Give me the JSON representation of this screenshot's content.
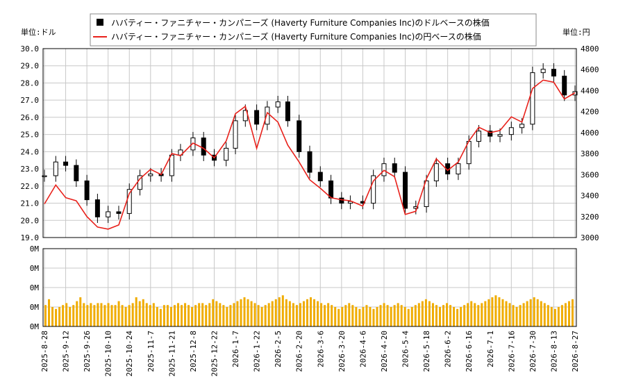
{
  "legend": {
    "usd_label": "ハバティー・ファニチャー・カンパニーズ (Haverty Furniture Companies Inc)のドルベースの株価",
    "jpy_label": "ハバティー・ファニチャー・カンパニーズ (Haverty Furniture Companies Inc)の円ベースの株価"
  },
  "units": {
    "left": "単位:ドル",
    "right": "単位:円"
  },
  "colors": {
    "candle": "#000000",
    "yen_line": "#e8201a",
    "volume": "#f0ac00",
    "grid": "#c8c8c8"
  },
  "chart_data": [
    {
      "type": "line",
      "subtype": "candlestick-with-line",
      "x_ticks": [
        "2025-8-28",
        "2025-9-12",
        "2025-9-26",
        "2025-10-10",
        "2025-10-24",
        "2025-11-7",
        "2025-11-21",
        "2025-12-8",
        "2025-12-22",
        "2026-1-7",
        "2026-1-22",
        "2026-2-5",
        "2026-2-20",
        "2026-3-6",
        "2026-3-20",
        "2026-4-6",
        "2026-4-20",
        "2026-5-4",
        "2026-5-18",
        "2026-6-2",
        "2026-6-16",
        "2026-7-1",
        "2026-7-16",
        "2026-7-30",
        "2026-8-13",
        "2026-8-27"
      ],
      "y_left": {
        "min": 19.0,
        "max": 30.0,
        "ticks": [
          "19.0",
          "20.0",
          "21.0",
          "22.0",
          "23.0",
          "24.0",
          "25.0",
          "26.0",
          "27.0",
          "28.0",
          "29.0",
          "30.0"
        ]
      },
      "y_right": {
        "min": 3000,
        "max": 4800,
        "ticks": [
          "3000",
          "3200",
          "3400",
          "3600",
          "3800",
          "4000",
          "4200",
          "4400",
          "4600",
          "4800"
        ]
      },
      "grid": true,
      "legend_position": "top",
      "series": [
        {
          "name": "ハバティー・ファニチャー・カンパニーズ (Haverty Furniture Companies Inc)のドルベースの株価",
          "axis": "left",
          "x": [
            "2025-8-28",
            "2025-9-5",
            "2025-9-12",
            "2025-9-19",
            "2025-9-26",
            "2025-10-3",
            "2025-10-10",
            "2025-10-17",
            "2025-10-24",
            "2025-10-31",
            "2025-11-7",
            "2025-11-14",
            "2025-11-21",
            "2025-11-28",
            "2025-12-8",
            "2025-12-15",
            "2025-12-22",
            "2025-12-31",
            "2026-1-7",
            "2026-1-14",
            "2026-1-22",
            "2026-1-29",
            "2026-2-5",
            "2026-2-12",
            "2026-2-20",
            "2026-2-27",
            "2026-3-6",
            "2026-3-13",
            "2026-3-20",
            "2026-3-27",
            "2026-4-6",
            "2026-4-13",
            "2026-4-20",
            "2026-4-27",
            "2026-5-4",
            "2026-5-11",
            "2026-5-18",
            "2026-5-25",
            "2026-6-2",
            "2026-6-9",
            "2026-6-16",
            "2026-6-23",
            "2026-7-1",
            "2026-7-8",
            "2026-7-16",
            "2026-7-23",
            "2026-7-30",
            "2026-8-6",
            "2026-8-13",
            "2026-8-20",
            "2026-8-27"
          ],
          "values": [
            22.6,
            23.4,
            23.2,
            22.3,
            21.2,
            20.2,
            20.5,
            20.4,
            21.8,
            22.6,
            22.7,
            22.6,
            23.8,
            24.1,
            24.8,
            23.8,
            23.5,
            24.2,
            25.8,
            26.4,
            25.6,
            26.6,
            26.9,
            25.8,
            24.0,
            22.8,
            22.3,
            21.3,
            21.0,
            21.1,
            21.0,
            22.6,
            23.3,
            22.8,
            20.7,
            20.8,
            22.3,
            23.3,
            22.7,
            23.3,
            24.6,
            25.2,
            24.9,
            25.0,
            25.4,
            25.6,
            28.6,
            28.8,
            28.4,
            27.3,
            27.5
          ]
        },
        {
          "name": "ハバティー・ファニチャー・カンパニーズ (Haverty Furniture Companies Inc)の円ベースの株価",
          "axis": "right",
          "x": [
            "2025-8-28",
            "2025-9-5",
            "2025-9-12",
            "2025-9-19",
            "2025-9-26",
            "2025-10-3",
            "2025-10-10",
            "2025-10-17",
            "2025-10-24",
            "2025-10-31",
            "2025-11-7",
            "2025-11-14",
            "2025-11-21",
            "2025-11-28",
            "2025-12-8",
            "2025-12-15",
            "2025-12-22",
            "2025-12-31",
            "2026-1-7",
            "2026-1-14",
            "2026-1-22",
            "2026-1-29",
            "2026-2-5",
            "2026-2-12",
            "2026-2-20",
            "2026-2-27",
            "2026-3-6",
            "2026-3-13",
            "2026-3-20",
            "2026-3-27",
            "2026-4-6",
            "2026-4-13",
            "2026-4-20",
            "2026-4-27",
            "2026-5-4",
            "2026-5-11",
            "2026-5-18",
            "2026-5-25",
            "2026-6-2",
            "2026-6-9",
            "2026-6-16",
            "2026-6-23",
            "2026-7-1",
            "2026-7-8",
            "2026-7-16",
            "2026-7-23",
            "2026-7-30",
            "2026-8-6",
            "2026-8-13",
            "2026-8-20",
            "2026-8-27"
          ],
          "values": [
            3320,
            3500,
            3380,
            3350,
            3200,
            3100,
            3080,
            3120,
            3420,
            3560,
            3650,
            3600,
            3800,
            3780,
            3900,
            3850,
            3760,
            3920,
            4180,
            4250,
            3850,
            4190,
            4100,
            3880,
            3720,
            3550,
            3470,
            3380,
            3360,
            3350,
            3300,
            3540,
            3640,
            3580,
            3220,
            3250,
            3560,
            3750,
            3640,
            3720,
            3920,
            4050,
            4000,
            4020,
            4150,
            4100,
            4420,
            4500,
            4480,
            4320,
            4380
          ]
        }
      ]
    },
    {
      "type": "bar",
      "y_ticks": [
        "0M",
        "0M",
        "0M",
        "0M",
        "0M"
      ],
      "series": [
        {
          "values": [
            0.55,
            0.7,
            0.5,
            0.45,
            0.5,
            0.55,
            0.6,
            0.5,
            0.55,
            0.65,
            0.75,
            0.6,
            0.55,
            0.6,
            0.55,
            0.6,
            0.6,
            0.55,
            0.6,
            0.55,
            0.55,
            0.65,
            0.55,
            0.5,
            0.55,
            0.6,
            0.75,
            0.65,
            0.7,
            0.6,
            0.55,
            0.6,
            0.5,
            0.45,
            0.55,
            0.55,
            0.5,
            0.55,
            0.6,
            0.55,
            0.6,
            0.55,
            0.5,
            0.55,
            0.6,
            0.6,
            0.55,
            0.6,
            0.7,
            0.65,
            0.6,
            0.55,
            0.5,
            0.55,
            0.6,
            0.65,
            0.7,
            0.75,
            0.7,
            0.65,
            0.6,
            0.55,
            0.5,
            0.55,
            0.6,
            0.65,
            0.7,
            0.75,
            0.8,
            0.7,
            0.65,
            0.6,
            0.55,
            0.6,
            0.65,
            0.7,
            0.75,
            0.7,
            0.65,
            0.6,
            0.55,
            0.6,
            0.55,
            0.5,
            0.45,
            0.5,
            0.55,
            0.6,
            0.55,
            0.5,
            0.45,
            0.5,
            0.55,
            0.5,
            0.45,
            0.5,
            0.55,
            0.6,
            0.55,
            0.5,
            0.55,
            0.6,
            0.55,
            0.5,
            0.45,
            0.5,
            0.55,
            0.6,
            0.65,
            0.7,
            0.65,
            0.6,
            0.55,
            0.5,
            0.55,
            0.6,
            0.55,
            0.5,
            0.45,
            0.5,
            0.55,
            0.6,
            0.65,
            0.6,
            0.55,
            0.6,
            0.65,
            0.7,
            0.75,
            0.8,
            0.75,
            0.7,
            0.65,
            0.6,
            0.55,
            0.5,
            0.55,
            0.6,
            0.65,
            0.7,
            0.75,
            0.7,
            0.65,
            0.6,
            0.55,
            0.5,
            0.45,
            0.5,
            0.55,
            0.6,
            0.65,
            0.7
          ]
        }
      ]
    }
  ]
}
